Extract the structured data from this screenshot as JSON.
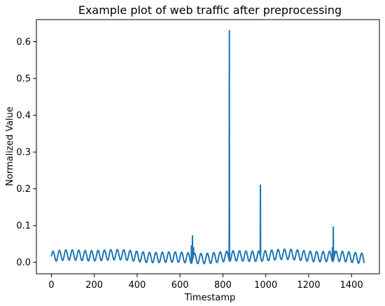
{
  "chart_data": {
    "type": "line",
    "title": "Example plot of web traffic after preprocessing",
    "xlabel": "Timestamp",
    "ylabel": "Normalized Value",
    "xlim": [
      -70,
      1530
    ],
    "ylim": [
      -0.031,
      0.66
    ],
    "xticks": [
      0,
      200,
      400,
      600,
      800,
      1000,
      1200,
      1400
    ],
    "xtick_labels": [
      "0",
      "200",
      "400",
      "600",
      "800",
      "1000",
      "1200",
      "1400"
    ],
    "yticks": [
      0.0,
      0.1,
      0.2,
      0.3,
      0.4,
      0.5,
      0.6
    ],
    "ytick_labels": [
      "0.0",
      "0.1",
      "0.2",
      "0.3",
      "0.4",
      "0.5",
      "0.6"
    ],
    "grid": false,
    "legend": "none",
    "line_color": "#1f77b4",
    "series": [
      {
        "baseline": {
          "x_range": [
            0,
            1460
          ],
          "period": 30,
          "min": 0.002,
          "max": 0.03
        },
        "spikes": [
          {
            "x": 653,
            "y": 0.045
          },
          {
            "x": 658,
            "y": 0.072
          },
          {
            "x": 663,
            "y": 0.04
          },
          {
            "x": 830,
            "y": 0.63
          },
          {
            "x": 975,
            "y": 0.21
          },
          {
            "x": 1311,
            "y": 0.04
          },
          {
            "x": 1315,
            "y": 0.096
          },
          {
            "x": 1320,
            "y": 0.03
          }
        ]
      }
    ]
  }
}
